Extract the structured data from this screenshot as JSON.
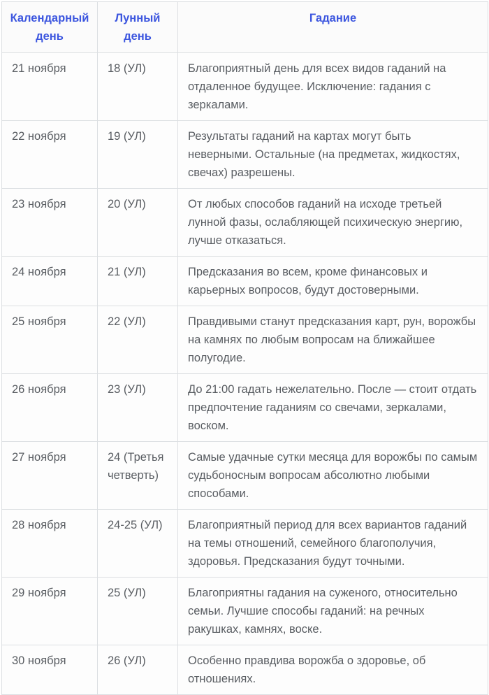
{
  "table": {
    "columns": [
      {
        "label": "Календарный день"
      },
      {
        "label": "Лунный день"
      },
      {
        "label": "Гадание"
      }
    ],
    "rows": [
      {
        "calendar_day": "21 ноября",
        "lunar_day": "18 (УЛ)",
        "divination": "Благоприятный день для всех видов гаданий на отдаленное будущее. Исключение: гадания с зеркалами."
      },
      {
        "calendar_day": "22 ноября",
        "lunar_day": "19 (УЛ)",
        "divination": "Результаты гаданий на картах могут быть неверными. Остальные (на предметах, жидкостях, свечах) разрешены."
      },
      {
        "calendar_day": "23 ноября",
        "lunar_day": "20 (УЛ)",
        "divination": "От любых способов гаданий на исходе третьей лунной фазы, ослабляющей психическую энергию, лучше отказаться."
      },
      {
        "calendar_day": "24 ноября",
        "lunar_day": "21 (УЛ)",
        "divination": "Предсказания во всем, кроме финансовых и карьерных вопросов, будут достоверными."
      },
      {
        "calendar_day": "25 ноября",
        "lunar_day": "22 (УЛ)",
        "divination": "Правдивыми станут предсказания карт, рун, ворожбы на камнях по любым вопросам на ближайшее полугодие."
      },
      {
        "calendar_day": "26 ноября",
        "lunar_day": "23 (УЛ)",
        "divination": "До 21:00 гадать нежелательно. После — стоит отдать предпочтение гаданиям со свечами, зеркалами, воском."
      },
      {
        "calendar_day": "27 ноября",
        "lunar_day": "24 (Третья четверть)",
        "divination": "Самые удачные сутки месяца для ворожбы по самым судьбоносным вопросам абсолютно любыми способами."
      },
      {
        "calendar_day": "28 ноября",
        "lunar_day": "24-25 (УЛ)",
        "divination": "Благоприятный период для всех вариантов гаданий на темы отношений, семейного благополучия, здоровья. Предсказания будут точными."
      },
      {
        "calendar_day": "29 ноября",
        "lunar_day": "25 (УЛ)",
        "divination": "Благоприятны гадания на суженого, относительно семьи. Лучшие способы гаданий: на речных ракушках, камнях, воске."
      },
      {
        "calendar_day": "30 ноября",
        "lunar_day": "26 (УЛ)",
        "divination": "Особенно правдива ворожба о здоровье, об отношениях."
      }
    ]
  },
  "colors": {
    "header_text": "#3c56df",
    "body_text": "#595d62",
    "border": "#dcdfe2",
    "header_background": "#fbfbfb",
    "cell_background": "#fdfdfd"
  }
}
